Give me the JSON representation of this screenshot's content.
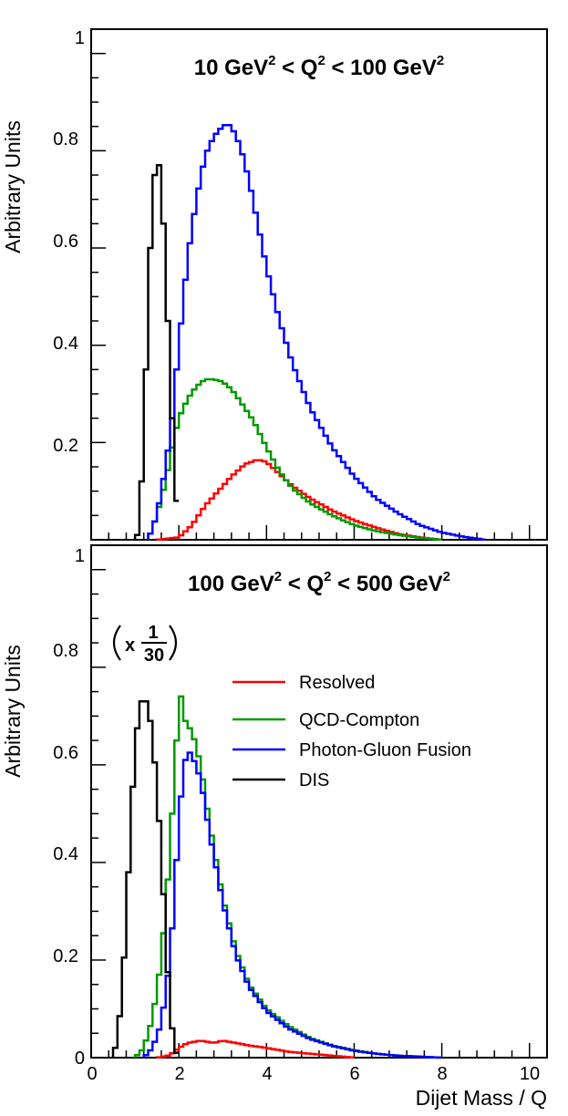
{
  "chart_data": [
    {
      "type": "line",
      "title": "10 GeV² < Q² < 100 GeV²",
      "title_parts": {
        "a": "10 GeV",
        "b": " < Q",
        "c": " < 100 GeV",
        "sup": "2"
      },
      "ylabel": "Arbitrary Units",
      "xlabel": "",
      "xlim": [
        0,
        10.4
      ],
      "ylim": [
        0,
        1.05
      ],
      "y_ticks": [
        "0.2",
        "0.4",
        "0.6",
        "0.8",
        "1"
      ],
      "series": [
        {
          "color": "#ff0000",
          "x": [
            1.5,
            2.0,
            2.3,
            2.6,
            2.9,
            3.2,
            3.5,
            3.8,
            4.0,
            4.3,
            4.6,
            5.0,
            5.5,
            6.0,
            6.5,
            7.0,
            7.5,
            8.0
          ],
          "y": [
            0.0,
            0.005,
            0.03,
            0.07,
            0.1,
            0.13,
            0.155,
            0.165,
            0.16,
            0.135,
            0.11,
            0.085,
            0.06,
            0.04,
            0.025,
            0.012,
            0.005,
            0.0
          ]
        },
        {
          "color": "#009900",
          "x": [
            1.3,
            1.5,
            1.7,
            1.85,
            2.0,
            2.2,
            2.4,
            2.6,
            2.8,
            3.0,
            3.2,
            3.4,
            3.7,
            4.0,
            4.3,
            4.6,
            5.0,
            5.5,
            6.0,
            6.5,
            7.0,
            7.5,
            8.0
          ],
          "y": [
            0.0,
            0.05,
            0.12,
            0.19,
            0.25,
            0.29,
            0.315,
            0.33,
            0.33,
            0.325,
            0.31,
            0.285,
            0.245,
            0.19,
            0.14,
            0.105,
            0.075,
            0.05,
            0.03,
            0.018,
            0.01,
            0.004,
            0.0
          ]
        },
        {
          "color": "#0000ff",
          "x": [
            1.3,
            1.5,
            1.7,
            1.85,
            2.0,
            2.2,
            2.4,
            2.6,
            2.8,
            3.0,
            3.1,
            3.2,
            3.4,
            3.6,
            3.8,
            4.0,
            4.3,
            4.6,
            5.0,
            5.5,
            6.0,
            6.5,
            7.0,
            7.5,
            8.0,
            8.5,
            9.0
          ],
          "y": [
            0.0,
            0.05,
            0.15,
            0.25,
            0.4,
            0.58,
            0.7,
            0.79,
            0.83,
            0.85,
            0.855,
            0.85,
            0.81,
            0.74,
            0.65,
            0.56,
            0.45,
            0.36,
            0.27,
            0.19,
            0.13,
            0.085,
            0.055,
            0.03,
            0.015,
            0.006,
            0.0
          ]
        },
        {
          "color": "#000000",
          "x": [
            1.0,
            1.05,
            1.15,
            1.25,
            1.35,
            1.45,
            1.55,
            1.65,
            1.75,
            1.85,
            1.95,
            2.05
          ],
          "y": [
            0.0,
            0.01,
            0.12,
            0.35,
            0.6,
            0.75,
            0.77,
            0.65,
            0.45,
            0.25,
            0.08,
            0.0
          ]
        }
      ]
    },
    {
      "type": "line",
      "title": "100 GeV² < Q² < 500 GeV²",
      "title_parts": {
        "a": "100 GeV",
        "b": " < Q",
        "c": " < 500 GeV",
        "sup": "2"
      },
      "ylabel": "Arbitrary Units",
      "xlabel": "Dijet Mass / Q",
      "xlim": [
        0,
        10.4
      ],
      "ylim": [
        0,
        1.05
      ],
      "x_ticks": [
        "0",
        "2",
        "4",
        "6",
        "8",
        "10"
      ],
      "y_ticks": [
        "0",
        "0.2",
        "0.4",
        "0.6",
        "0.8",
        "1"
      ],
      "scale_note": {
        "prefix": "x",
        "numerator": "1",
        "denominator": "30"
      },
      "legend": {
        "position": "right",
        "entries": [
          {
            "label": "Resolved",
            "color": "#ff0000"
          },
          {
            "label": "QCD-Compton",
            "color": "#009900"
          },
          {
            "label": "Photon-Gluon Fusion",
            "color": "#0000ff"
          },
          {
            "label": "DIS",
            "color": "#000000"
          }
        ]
      },
      "series": [
        {
          "color": "#ff0000",
          "x": [
            1.5,
            1.8,
            2.0,
            2.2,
            2.5,
            2.8,
            3.0,
            3.3,
            3.6,
            4.0,
            4.5,
            5.0,
            5.5,
            6.0
          ],
          "y": [
            0.0,
            0.005,
            0.02,
            0.03,
            0.035,
            0.03,
            0.035,
            0.03,
            0.025,
            0.02,
            0.012,
            0.008,
            0.004,
            0.0
          ]
        },
        {
          "color": "#009900",
          "x": [
            1.0,
            1.2,
            1.4,
            1.6,
            1.8,
            1.9,
            2.0,
            2.05,
            2.1,
            2.2,
            2.3,
            2.5,
            2.7,
            3.0,
            3.3,
            3.6,
            4.0,
            4.5,
            5.0,
            5.5,
            6.0,
            6.5,
            7.0,
            7.5,
            8.0
          ],
          "y": [
            0.0,
            0.02,
            0.08,
            0.2,
            0.42,
            0.58,
            0.72,
            0.74,
            0.7,
            0.68,
            0.67,
            0.6,
            0.48,
            0.33,
            0.22,
            0.15,
            0.1,
            0.065,
            0.04,
            0.025,
            0.015,
            0.008,
            0.004,
            0.002,
            0.0
          ]
        },
        {
          "color": "#0000ff",
          "x": [
            1.2,
            1.4,
            1.6,
            1.8,
            1.9,
            2.0,
            2.1,
            2.2,
            2.3,
            2.5,
            2.7,
            3.0,
            3.3,
            3.6,
            4.0,
            4.5,
            5.0,
            5.5,
            6.0,
            6.5,
            7.0,
            7.5,
            8.0
          ],
          "y": [
            0.0,
            0.02,
            0.07,
            0.2,
            0.33,
            0.48,
            0.59,
            0.63,
            0.62,
            0.57,
            0.46,
            0.32,
            0.21,
            0.145,
            0.095,
            0.06,
            0.038,
            0.024,
            0.014,
            0.008,
            0.004,
            0.002,
            0.0
          ]
        },
        {
          "color": "#000000",
          "x": [
            0.5,
            0.6,
            0.7,
            0.8,
            0.9,
            1.0,
            1.1,
            1.2,
            1.3,
            1.4,
            1.5,
            1.6,
            1.7,
            1.8,
            1.9,
            2.0
          ],
          "y": [
            0.0,
            0.04,
            0.13,
            0.28,
            0.48,
            0.63,
            0.72,
            0.74,
            0.72,
            0.66,
            0.55,
            0.42,
            0.25,
            0.1,
            0.02,
            0.0
          ]
        }
      ]
    }
  ]
}
